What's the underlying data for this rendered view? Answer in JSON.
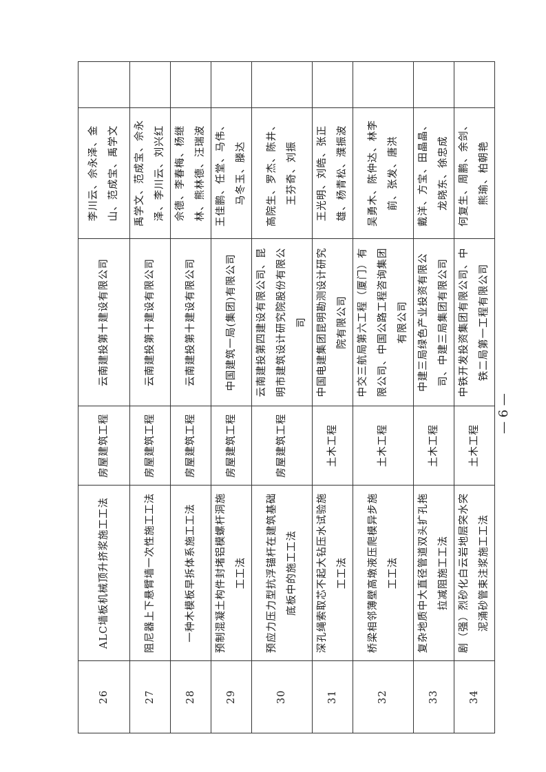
{
  "rows": [
    {
      "no": "26",
      "method": "ALC墙板机械顶升挤浆施工工法",
      "category": "房屋建筑工程",
      "company": "云南建投第十建设有限公司",
      "persons": "李川云、佘永泽、金山、范成宝、禹学文",
      "remark": ""
    },
    {
      "no": "27",
      "method": "阻尼器上下悬臂墙一次性施工工法",
      "category": "房屋建筑工程",
      "company": "云南建投第十建设有限公司",
      "persons": "禹学文、范成宝、佘永泽、李川云、刘兴红",
      "remark": ""
    },
    {
      "no": "28",
      "method": "一种木模板早拆体系施工工法",
      "category": "房屋建筑工程",
      "company": "云南建投第十建设有限公司",
      "persons": "佘德、李春梅、杨继林、熊林德、汪瑞波",
      "remark": ""
    },
    {
      "no": "29",
      "method": "预制混凝土构件封堵铝模螺杆洞施工工法",
      "category": "房屋建筑工程",
      "company": "中国建筑一局(集团)有限公司",
      "persons": "王佳鹏、任堂、马伟、马冬玉、滕达",
      "remark": ""
    },
    {
      "no": "30",
      "method": "预应力压力型抗浮锚杆在建筑基础底板中的施工工法",
      "category": "房屋建筑工程",
      "company": "云南建投第四建设有限公司、昆明市建筑设计研究院股份有限公司",
      "persons": "高院生、罗杰、陈井、王芬奇、刘振",
      "remark": ""
    },
    {
      "no": "31",
      "method": "深孔绳索取芯不起大钻压水试验施工工法",
      "category": "土木工程",
      "company": "中国电建集团昆明勘测设计研究院有限公司",
      "persons": "王光明、刘皓、张正雄、杨青松、濮振波",
      "remark": ""
    },
    {
      "no": "32",
      "method": "桥梁相邻薄壁高墩液压爬模异步施工工法",
      "category": "土木工程",
      "company": "中交三航局第六工程（厦门）有限公司、中国公路工程咨询集团有限公司",
      "persons": "吴勇木、陈仲达、林李前、张发、唐洪",
      "remark": ""
    },
    {
      "no": "33",
      "method": "复杂地质中大直径管道双头扩孔拖拉减阻施工工法",
      "category": "土木工程",
      "company": "中建三局绿色产业投资有限公司、中建三局集团有限公司",
      "persons": "戴洋、方宝、田晶晶、龙晓东、徐忠成",
      "remark": ""
    },
    {
      "no": "34",
      "method": "剧（强）烈砂化白云岩地层突水突泥涌砂管束注浆施工工法",
      "category": "土木工程",
      "company": "中铁开发投资集团有限公司、中铁二局第一工程有限公司",
      "persons": "何复生、周鹏、余剑、熊瑜、柏朝艳",
      "remark": ""
    }
  ],
  "page_number": "— 6 —"
}
